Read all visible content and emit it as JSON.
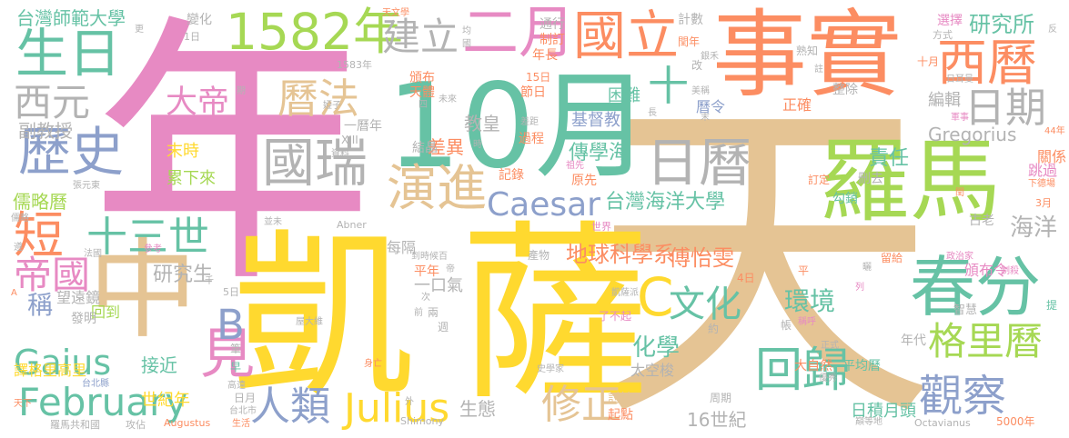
{
  "colors": {
    "pink": "#e78ac3",
    "tan": "#e5c494",
    "yellow": "#ffd92f",
    "green": "#66c2a5",
    "orange": "#fc8d62",
    "lime": "#a6d854",
    "blue": "#8da0cb",
    "gray": "#b3b3b3"
  },
  "words": [
    {
      "text": "年",
      "color": "pink"
    },
    {
      "text": "天",
      "color": "tan"
    },
    {
      "text": "凱",
      "color": "yellow"
    },
    {
      "text": "薩",
      "color": "yellow"
    },
    {
      "text": "事實",
      "color": "orange"
    },
    {
      "text": "10月",
      "color": "green"
    },
    {
      "text": "羅馬",
      "color": "lime"
    },
    {
      "text": "春分",
      "color": "green"
    },
    {
      "text": "中",
      "color": "tan"
    },
    {
      "text": "1582年",
      "color": "lime"
    },
    {
      "text": "二月",
      "color": "pink"
    },
    {
      "text": "國立",
      "color": "orange"
    },
    {
      "text": "生日",
      "color": "green"
    },
    {
      "text": "西曆",
      "color": "orange"
    },
    {
      "text": "日曆",
      "color": "gray"
    },
    {
      "text": "國瑞",
      "color": "gray"
    },
    {
      "text": "歷史",
      "color": "blue"
    },
    {
      "text": "建立",
      "color": "gray"
    },
    {
      "text": "演進",
      "color": "tan"
    },
    {
      "text": "曆法",
      "color": "tan"
    },
    {
      "text": "日期",
      "color": "gray"
    },
    {
      "text": "Caesar",
      "color": "blue"
    },
    {
      "text": "February",
      "color": "green"
    },
    {
      "text": "Julius",
      "color": "yellow"
    },
    {
      "text": "Gaius",
      "color": "green"
    },
    {
      "text": "回歸",
      "color": "green"
    },
    {
      "text": "觀察",
      "color": "blue"
    },
    {
      "text": "格里曆",
      "color": "lime"
    },
    {
      "text": "短",
      "color": "orange"
    },
    {
      "text": "見",
      "color": "pink"
    },
    {
      "text": "修正",
      "color": "tan"
    },
    {
      "text": "人類",
      "color": "blue"
    },
    {
      "text": "文化",
      "color": "green"
    },
    {
      "text": "十三世",
      "color": "green"
    },
    {
      "text": "帝國",
      "color": "pink"
    },
    {
      "text": "西元",
      "color": "gray"
    },
    {
      "text": "大帝",
      "color": "pink"
    },
    {
      "text": "B",
      "color": "blue"
    },
    {
      "text": "C",
      "color": "yellow"
    },
    {
      "text": "十",
      "color": "green"
    },
    {
      "text": "研究所",
      "color": "green"
    },
    {
      "text": "台灣海洋大學",
      "color": "green"
    },
    {
      "text": "傳學海",
      "color": "green"
    },
    {
      "text": "傅怡雯",
      "color": "orange"
    },
    {
      "text": "環境",
      "color": "green"
    },
    {
      "text": "化學",
      "color": "green"
    },
    {
      "text": "地球科學系",
      "color": "orange"
    },
    {
      "text": "海洋",
      "color": "gray"
    },
    {
      "text": "責任",
      "color": "green"
    },
    {
      "text": "生態",
      "color": "gray"
    },
    {
      "text": "教皇",
      "color": "gray"
    },
    {
      "text": "差異",
      "color": "orange"
    },
    {
      "text": "研究生",
      "color": "gray"
    },
    {
      "text": "稱",
      "color": "blue"
    },
    {
      "text": "接近",
      "color": "green"
    },
    {
      "text": "副教授",
      "color": "gray"
    },
    {
      "text": "台灣師範大學",
      "color": "green"
    },
    {
      "text": "儒略曆",
      "color": "lime"
    },
    {
      "text": "末時",
      "color": "yellow"
    },
    {
      "text": "累下來",
      "color": "lime"
    },
    {
      "text": "16世紀",
      "color": "gray"
    },
    {
      "text": "日積月頭",
      "color": "green"
    },
    {
      "text": "Gregorius",
      "color": "gray"
    },
    {
      "text": "基督教",
      "color": "blue"
    },
    {
      "text": "困難",
      "color": "green"
    },
    {
      "text": "編輯",
      "color": "gray"
    },
    {
      "text": "曆令",
      "color": "blue"
    },
    {
      "text": "世紀年",
      "color": "yellow"
    },
    {
      "text": "譯格里高里",
      "color": "yellow"
    },
    {
      "text": "一口氣",
      "color": "gray"
    },
    {
      "text": "每隔",
      "color": "gray"
    },
    {
      "text": "平年",
      "color": "orange"
    },
    {
      "text": "頒布令",
      "color": "pink"
    },
    {
      "text": "關係",
      "color": "orange"
    },
    {
      "text": "跳過",
      "color": "pink"
    },
    {
      "text": "望遠鏡",
      "color": "gray"
    },
    {
      "text": "回到",
      "color": "lime"
    },
    {
      "text": "發明",
      "color": "gray"
    },
    {
      "text": "太空梭",
      "color": "gray"
    },
    {
      "text": "大自然",
      "color": "orange"
    },
    {
      "text": "平均曆",
      "color": "green"
    },
    {
      "text": "年代",
      "color": "gray"
    },
    {
      "text": "正確",
      "color": "orange"
    },
    {
      "text": "整除",
      "color": "gray"
    },
    {
      "text": "記錄",
      "color": "orange"
    },
    {
      "text": "過程",
      "color": "orange"
    },
    {
      "text": "結晶",
      "color": "gray"
    },
    {
      "text": "一曆年",
      "color": "gray"
    },
    {
      "text": "變化",
      "color": "gray"
    },
    {
      "text": "計數",
      "color": "gray"
    },
    {
      "text": "通行",
      "color": "gray"
    },
    {
      "text": "制訂",
      "color": "orange"
    },
    {
      "text": "年長",
      "color": "orange"
    },
    {
      "text": "頒布",
      "color": "orange"
    },
    {
      "text": "天體",
      "color": "orange"
    },
    {
      "text": "節日",
      "color": "orange"
    },
    {
      "text": "選擇",
      "color": "pink"
    },
    {
      "text": "方式",
      "color": "gray"
    },
    {
      "text": "熟知",
      "color": "gray"
    },
    {
      "text": "十月",
      "color": "orange"
    },
    {
      "text": "閏年",
      "color": "orange"
    },
    {
      "text": "原先",
      "color": "orange"
    },
    {
      "text": "討論",
      "color": "tan"
    },
    {
      "text": "起點",
      "color": "orange"
    },
    {
      "text": "周期",
      "color": "gray"
    },
    {
      "text": "5000年",
      "color": "orange"
    },
    {
      "text": "古老",
      "color": "gray"
    },
    {
      "text": "智慧",
      "color": "gray"
    },
    {
      "text": "留給",
      "color": "orange"
    },
    {
      "text": "勾銷",
      "color": "green"
    },
    {
      "text": "刪去",
      "color": "gray"
    },
    {
      "text": "訂定",
      "color": "orange"
    },
    {
      "text": "了不起",
      "color": "pink"
    },
    {
      "text": "1583年",
      "color": "gray"
    },
    {
      "text": "15日",
      "color": "orange"
    },
    {
      "text": "3月",
      "color": "orange"
    },
    {
      "text": "4日",
      "color": "orange"
    },
    {
      "text": "5日",
      "color": "gray"
    },
    {
      "text": "1日",
      "color": "gray"
    },
    {
      "text": "44年",
      "color": "orange"
    },
    {
      "text": "XIII",
      "color": "gray"
    },
    {
      "text": "Abner",
      "color": "gray"
    },
    {
      "text": "Shimony",
      "color": "gray"
    },
    {
      "text": "Augustus",
      "color": "orange"
    },
    {
      "text": "Octavianus",
      "color": "gray"
    },
    {
      "text": "羅馬共和國",
      "color": "gray"
    },
    {
      "text": "攻佔",
      "color": "gray"
    },
    {
      "text": "台北縣",
      "color": "blue"
    },
    {
      "text": "高遠",
      "color": "gray"
    },
    {
      "text": "日月",
      "color": "gray"
    },
    {
      "text": "台北市",
      "color": "gray"
    },
    {
      "text": "生活",
      "color": "orange"
    },
    {
      "text": "身亡",
      "color": "orange"
    },
    {
      "text": "世界",
      "color": "pink"
    },
    {
      "text": "並未",
      "color": "gray"
    },
    {
      "text": "產物",
      "color": "gray"
    },
    {
      "text": "凱薩派",
      "color": "gray"
    },
    {
      "text": "史學家",
      "color": "gray"
    },
    {
      "text": "天文學",
      "color": "orange"
    },
    {
      "text": "銀禾",
      "color": "gray"
    },
    {
      "text": "美稱",
      "color": "gray"
    },
    {
      "text": "日耳曼",
      "color": "gray"
    },
    {
      "text": "軍事",
      "color": "pink"
    },
    {
      "text": "下德場",
      "color": "orange"
    },
    {
      "text": "政治家",
      "color": "pink"
    },
    {
      "text": "制殺",
      "color": "pink"
    },
    {
      "text": "巔等地",
      "color": "gray"
    },
    {
      "text": "優秀",
      "color": "gray"
    },
    {
      "text": "正式",
      "color": "gray"
    },
    {
      "text": "稱呼",
      "color": "pink"
    },
    {
      "text": "帳",
      "color": "gray"
    },
    {
      "text": "約",
      "color": "gray"
    },
    {
      "text": "屋大維",
      "color": "gray"
    },
    {
      "text": "張元東",
      "color": "gray"
    },
    {
      "text": "婭子",
      "color": "gray"
    },
    {
      "text": "資料",
      "color": "gray"
    },
    {
      "text": "參考",
      "color": "pink"
    },
    {
      "text": "天下",
      "color": "orange"
    },
    {
      "text": "法國",
      "color": "gray"
    },
    {
      "text": "到時候",
      "color": "gray"
    },
    {
      "text": "未來",
      "color": "gray"
    },
    {
      "text": "差距",
      "color": "gray"
    },
    {
      "text": "祖先",
      "color": "pink"
    },
    {
      "text": "平",
      "color": "orange"
    },
    {
      "text": "前",
      "color": "gray"
    },
    {
      "text": "次",
      "color": "gray"
    },
    {
      "text": "兩",
      "color": "gray"
    },
    {
      "text": "週",
      "color": "gray"
    },
    {
      "text": "帝",
      "color": "gray"
    },
    {
      "text": "百",
      "color": "gray"
    },
    {
      "text": "均",
      "color": "gray"
    },
    {
      "text": "國",
      "color": "gray"
    },
    {
      "text": "四",
      "color": "gray"
    },
    {
      "text": "時",
      "color": "gray"
    },
    {
      "text": "千",
      "color": "gray"
    },
    {
      "text": "筆",
      "color": "gray"
    },
    {
      "text": "早",
      "color": "green"
    },
    {
      "text": "外",
      "color": "gray"
    },
    {
      "text": "更",
      "color": "gray"
    },
    {
      "text": "期",
      "color": "gray"
    },
    {
      "text": "改",
      "color": "gray"
    },
    {
      "text": "長",
      "color": "gray"
    },
    {
      "text": "末",
      "color": "gray"
    },
    {
      "text": "註",
      "color": "gray"
    },
    {
      "text": "閏",
      "color": "orange"
    },
    {
      "text": "曬",
      "color": "gray"
    },
    {
      "text": "列",
      "color": "pink"
    },
    {
      "text": "提",
      "color": "green"
    },
    {
      "text": "反",
      "color": "gray"
    },
    {
      "text": "遵",
      "color": "gray"
    },
    {
      "text": "A",
      "color": "orange"
    },
    {
      "text": "儒略",
      "color": "gray"
    }
  ]
}
